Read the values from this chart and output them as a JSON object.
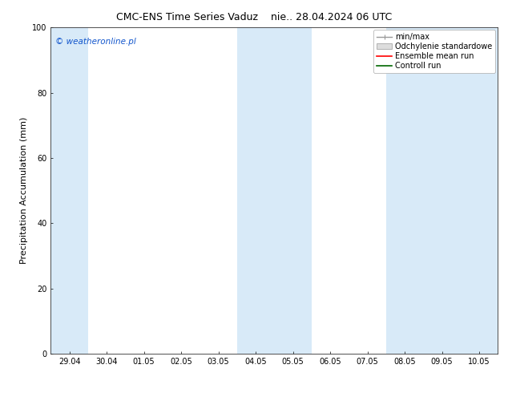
{
  "title_left": "CMC-ENS Time Series Vaduz",
  "title_right": "nie.. 28.04.2024 06 UTC",
  "ylabel": "Precipitation Accumulation (mm)",
  "ylim": [
    0,
    100
  ],
  "yticks": [
    0,
    20,
    40,
    60,
    80,
    100
  ],
  "xtick_labels": [
    "29.04",
    "30.04",
    "01.05",
    "02.05",
    "03.05",
    "04.05",
    "05.05",
    "06.05",
    "07.05",
    "08.05",
    "09.05",
    "10.05"
  ],
  "xtick_positions": [
    0,
    1,
    2,
    3,
    4,
    5,
    6,
    7,
    8,
    9,
    10,
    11
  ],
  "xlim": [
    -0.5,
    11.5
  ],
  "shaded_bands": [
    {
      "xmin": -0.5,
      "xmax": 0.5
    },
    {
      "xmin": 4.5,
      "xmax": 6.5
    },
    {
      "xmin": 8.5,
      "xmax": 11.5
    }
  ],
  "shade_color": "#d8eaf8",
  "background_color": "#ffffff",
  "watermark_text": "© weatheronline.pl",
  "watermark_color": "#1155cc",
  "legend_labels": [
    "min/max",
    "Odchylenie standardowe",
    "Ensemble mean run",
    "Controll run"
  ],
  "legend_line_color_0": "#999999",
  "legend_fill_color_1": "#dddddd",
  "legend_line_color_2": "#ff0000",
  "legend_line_color_3": "#006600",
  "title_fontsize": 9,
  "tick_fontsize": 7,
  "ylabel_fontsize": 8,
  "watermark_fontsize": 7.5,
  "legend_fontsize": 7,
  "border_color": "#333333"
}
